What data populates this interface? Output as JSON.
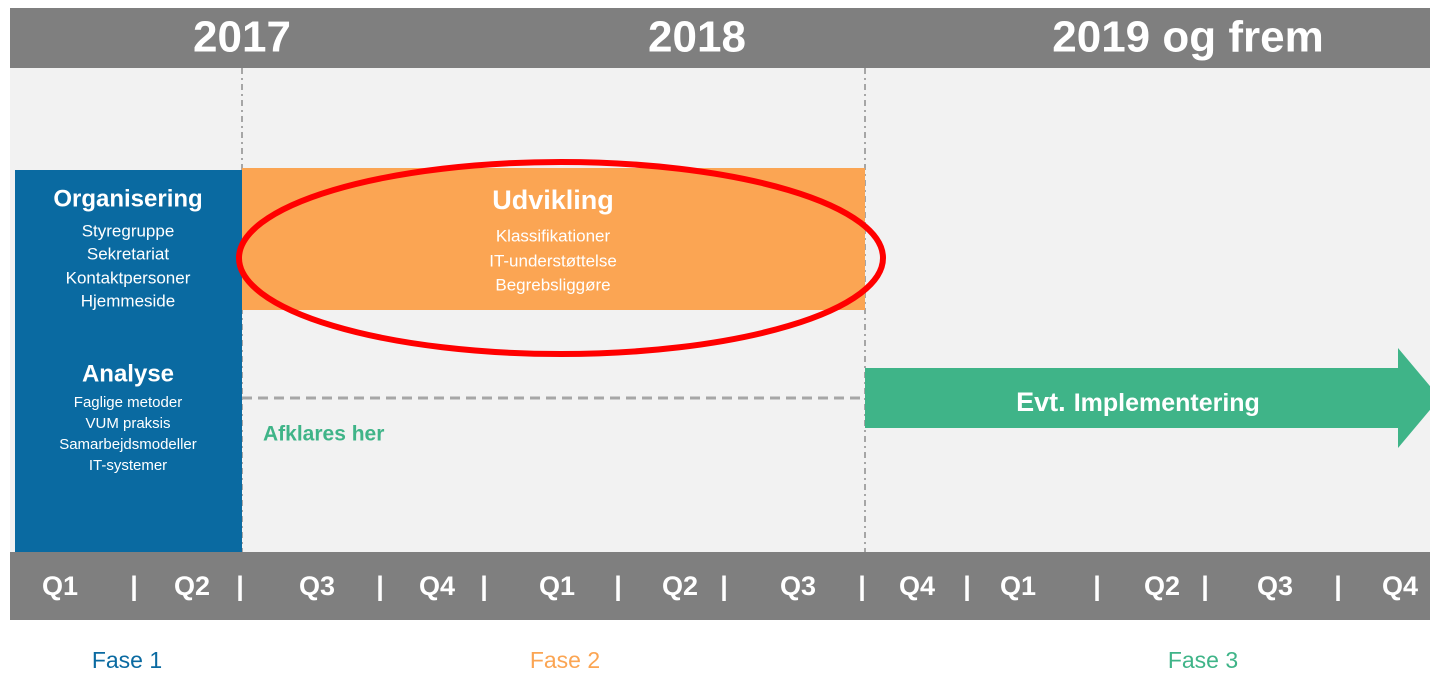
{
  "years": [
    "2017",
    "2018",
    "2019 og frem"
  ],
  "phase1": {
    "sections": [
      {
        "title": "Organisering",
        "items": [
          "Styregruppe",
          "Sekretariat",
          "Kontaktpersoner",
          "Hjemmeside"
        ]
      },
      {
        "title": "Analyse",
        "items": [
          "Faglige metoder",
          "VUM praksis",
          "Samarbejdsmodeller",
          "IT-systemer"
        ]
      }
    ]
  },
  "phase2": {
    "title": "Udvikling",
    "items": [
      "Klassifikationer",
      "IT-understøttelse",
      "Begrebsliggøre"
    ],
    "note": "Afklares her"
  },
  "phase3": {
    "label_prefix": "Evt.",
    "label": "Implementering"
  },
  "quarters_bar": {
    "quarters": [
      "Q1",
      "Q2",
      "Q3",
      "Q4",
      "Q1",
      "Q2",
      "Q3",
      "Q4",
      "Q1",
      "Q2",
      "Q3",
      "Q4"
    ],
    "separator": "|"
  },
  "phases": [
    "Fase 1",
    "Fase 2",
    "Fase 3"
  ]
}
